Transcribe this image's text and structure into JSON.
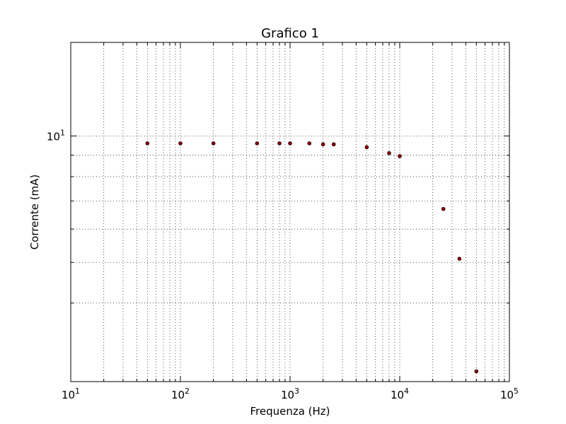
{
  "chart_data": {
    "type": "scatter",
    "title": "Grafico 1",
    "xlabel": "Frequenza (Hz)",
    "ylabel": "Corrente (mA)",
    "xscale": "log",
    "yscale": "log",
    "xlim": [
      10,
      100000
    ],
    "ylim": [
      2.6,
      16.7
    ],
    "grid": true,
    "x_ticks": [
      {
        "base": "10",
        "exp": "1",
        "value": 10
      },
      {
        "base": "10",
        "exp": "2",
        "value": 100
      },
      {
        "base": "10",
        "exp": "3",
        "value": 1000
      },
      {
        "base": "10",
        "exp": "4",
        "value": 10000
      },
      {
        "base": "10",
        "exp": "5",
        "value": 100000
      }
    ],
    "y_ticks": [
      {
        "base": "10",
        "exp": "1",
        "value": 10
      }
    ],
    "y_minor_ticks": [
      4,
      5,
      6,
      7,
      8,
      9
    ],
    "marker_color": "#8b0000",
    "series": [
      {
        "x": [
          50,
          100,
          200,
          500,
          800,
          1000,
          1500,
          2000,
          2500,
          5000,
          8000,
          10000,
          25000,
          35000,
          50000
        ],
        "y": [
          9.6,
          9.6,
          9.6,
          9.6,
          9.6,
          9.6,
          9.6,
          9.55,
          9.55,
          9.4,
          9.1,
          8.95,
          6.7,
          5.1,
          2.75
        ]
      }
    ]
  }
}
